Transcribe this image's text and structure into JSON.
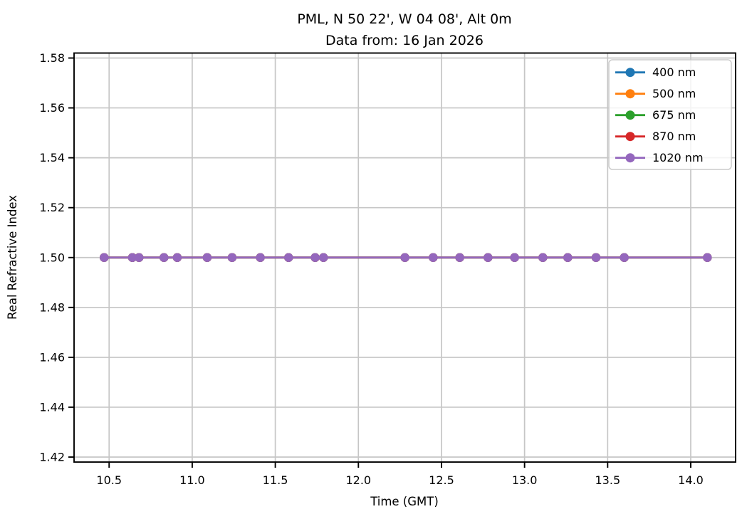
{
  "figure": {
    "title_line1": "PML, N 50 22', W 04 08', Alt 0m",
    "title_line2": "Data from: 16 Jan 2026"
  },
  "chart_data": {
    "type": "line",
    "title": "PML, N 50 22', W 04 08', Alt 0m\nData from: 16 Jan 2026",
    "title_lines": [
      "PML, N 50 22', W 04 08', Alt 0m",
      "Data from: 16 Jan 2026"
    ],
    "xlabel": "Time (GMT)",
    "ylabel": "Real Refractive Index",
    "xlim": [
      10.289,
      14.27
    ],
    "ylim": [
      1.418,
      1.582
    ],
    "xticks": [
      10.5,
      11.0,
      11.5,
      12.0,
      12.5,
      13.0,
      13.5,
      14.0
    ],
    "xtick_labels": [
      "10.5",
      "11.0",
      "11.5",
      "12.0",
      "12.5",
      "13.0",
      "13.5",
      "14.0"
    ],
    "yticks": [
      1.42,
      1.44,
      1.46,
      1.48,
      1.5,
      1.52,
      1.54,
      1.56,
      1.58
    ],
    "ytick_labels": [
      "1.42",
      "1.44",
      "1.46",
      "1.48",
      "1.50",
      "1.52",
      "1.54",
      "1.56",
      "1.58"
    ],
    "grid": true,
    "grid_color": "#c6c6c6",
    "spine_color": "#000000",
    "legend_position": "upper right",
    "legend_border_color": "#cccccc",
    "x": [
      10.47,
      10.64,
      10.68,
      10.83,
      10.91,
      11.09,
      11.24,
      11.41,
      11.58,
      11.74,
      11.79,
      12.28,
      12.45,
      12.61,
      12.78,
      12.94,
      13.11,
      13.26,
      13.43,
      13.6,
      14.1
    ],
    "series": [
      {
        "name": "400 nm",
        "color": "#1f77b4",
        "values": [
          1.5,
          1.5,
          1.5,
          1.5,
          1.5,
          1.5,
          1.5,
          1.5,
          1.5,
          1.5,
          1.5,
          1.5,
          1.5,
          1.5,
          1.5,
          1.5,
          1.5,
          1.5,
          1.5,
          1.5,
          1.5
        ]
      },
      {
        "name": "500 nm",
        "color": "#ff7f0e",
        "values": [
          1.5,
          1.5,
          1.5,
          1.5,
          1.5,
          1.5,
          1.5,
          1.5,
          1.5,
          1.5,
          1.5,
          1.5,
          1.5,
          1.5,
          1.5,
          1.5,
          1.5,
          1.5,
          1.5,
          1.5,
          1.5
        ]
      },
      {
        "name": "675 nm",
        "color": "#2ca02c",
        "values": [
          1.5,
          1.5,
          1.5,
          1.5,
          1.5,
          1.5,
          1.5,
          1.5,
          1.5,
          1.5,
          1.5,
          1.5,
          1.5,
          1.5,
          1.5,
          1.5,
          1.5,
          1.5,
          1.5,
          1.5,
          1.5
        ]
      },
      {
        "name": "870 nm",
        "color": "#d62728",
        "values": [
          1.5,
          1.5,
          1.5,
          1.5,
          1.5,
          1.5,
          1.5,
          1.5,
          1.5,
          1.5,
          1.5,
          1.5,
          1.5,
          1.5,
          1.5,
          1.5,
          1.5,
          1.5,
          1.5,
          1.5,
          1.5
        ]
      },
      {
        "name": "1020 nm",
        "color": "#9467bd",
        "values": [
          1.5,
          1.5,
          1.5,
          1.5,
          1.5,
          1.5,
          1.5,
          1.5,
          1.5,
          1.5,
          1.5,
          1.5,
          1.5,
          1.5,
          1.5,
          1.5,
          1.5,
          1.5,
          1.5,
          1.5,
          1.5
        ]
      }
    ]
  }
}
